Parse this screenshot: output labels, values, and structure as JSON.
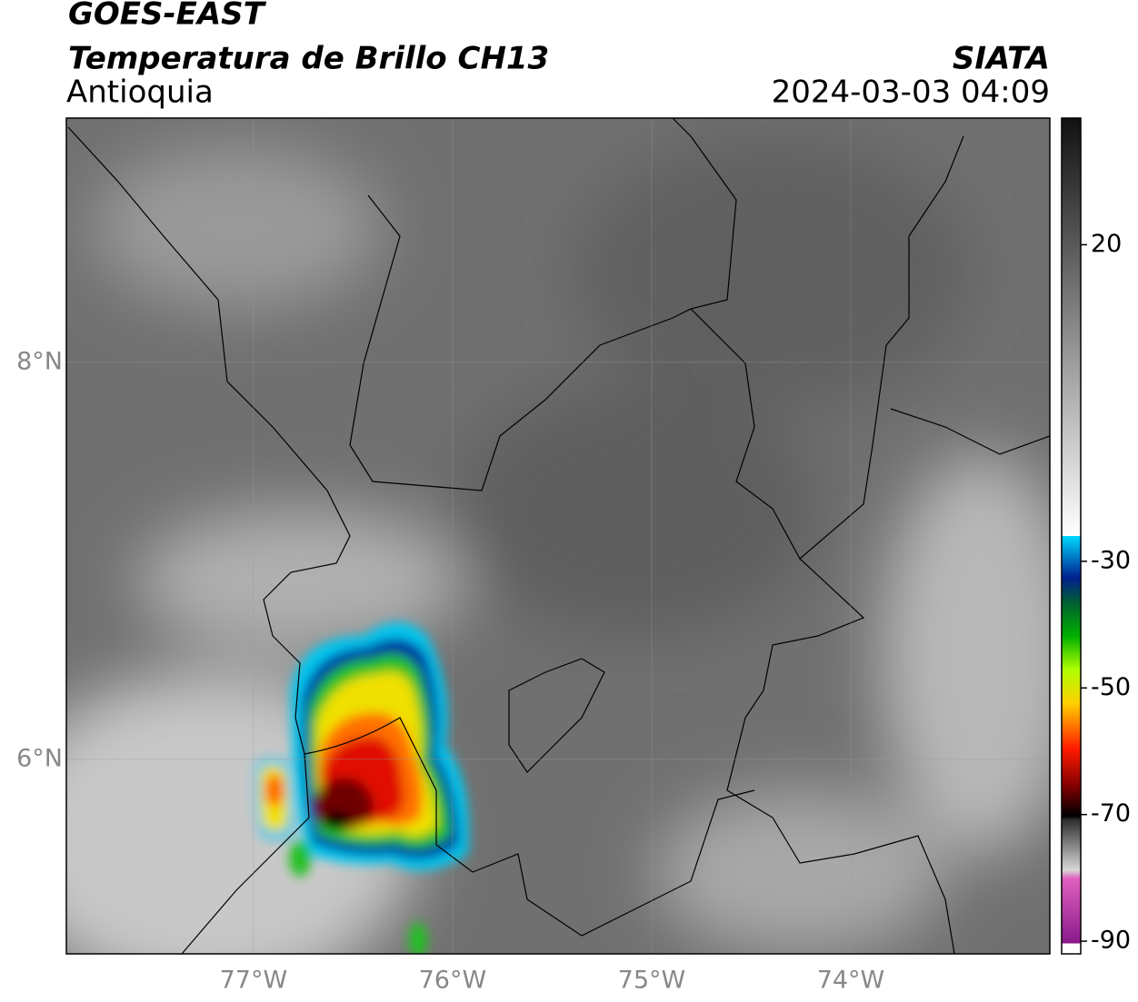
{
  "header": {
    "title": "GOES-EAST",
    "subtitle": "Temperatura de Brillo CH13",
    "region": "Antioquia",
    "source": "SIATA",
    "datetime": "2024-03-03 04:09"
  },
  "map": {
    "type": "map",
    "xlim": [
      -77.94,
      -73.0
    ],
    "ylim": [
      5.02,
      9.23
    ],
    "xticks": [
      {
        "value": -77,
        "label": "77°W"
      },
      {
        "value": -76,
        "label": "76°W"
      },
      {
        "value": -75,
        "label": "75°W"
      },
      {
        "value": -74,
        "label": "74°W"
      }
    ],
    "yticks": [
      {
        "value": 6,
        "label": "6°N"
      },
      {
        "value": 8,
        "label": "8°N"
      }
    ],
    "grid": true
  },
  "colorbar": {
    "lim": [
      -92,
      40
    ],
    "ticks": [
      -90,
      -70,
      -50,
      -30,
      20
    ]
  }
}
